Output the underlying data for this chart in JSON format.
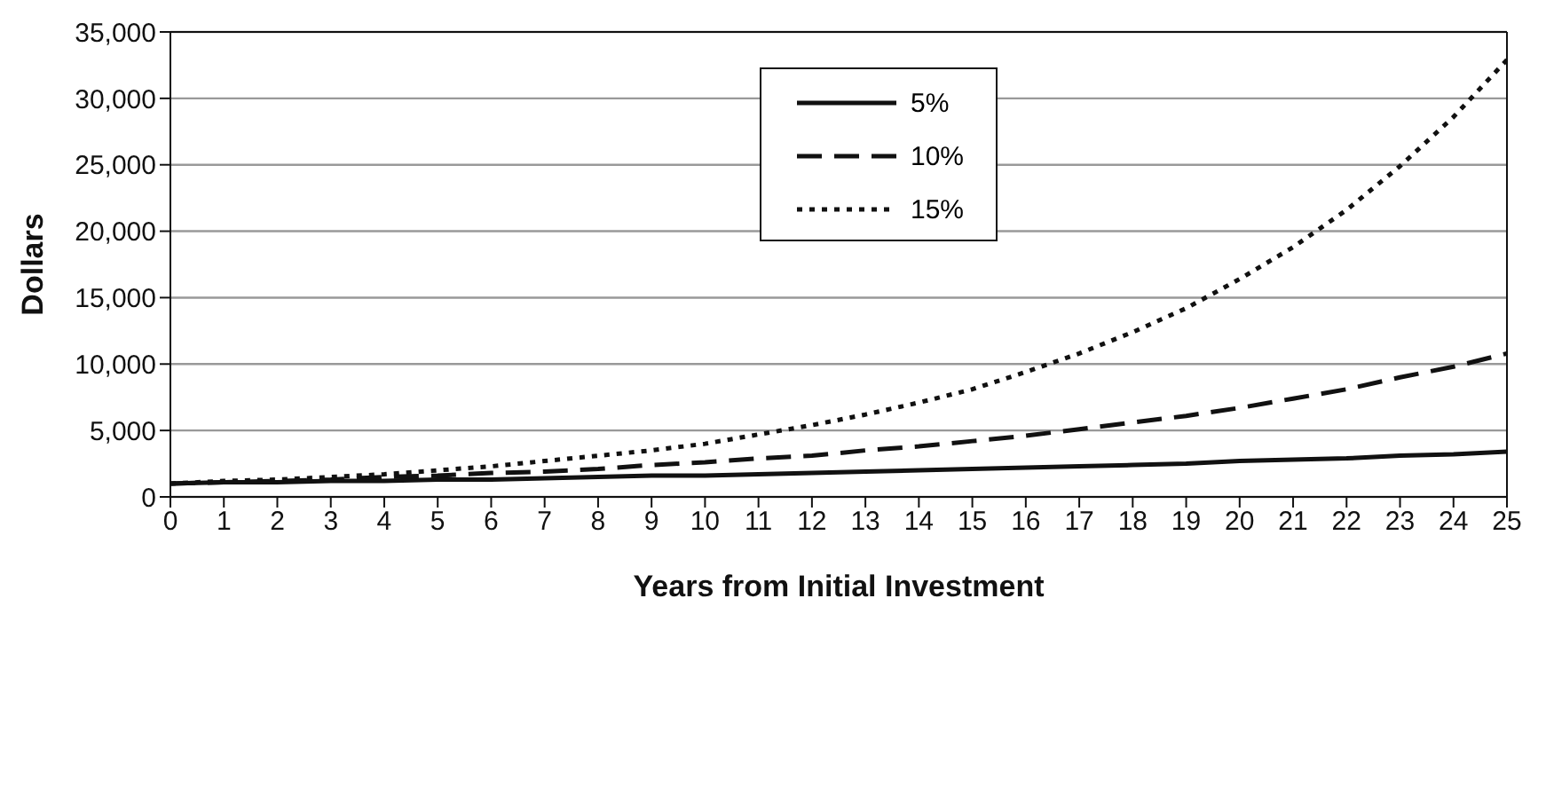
{
  "chart_data": {
    "type": "line",
    "xlabel": "Years from Initial Investment",
    "ylabel": "Dollars",
    "x": [
      0,
      1,
      2,
      3,
      4,
      5,
      6,
      7,
      8,
      9,
      10,
      11,
      12,
      13,
      14,
      15,
      16,
      17,
      18,
      19,
      20,
      21,
      22,
      23,
      24,
      25
    ],
    "series": [
      {
        "name": "5%",
        "color": "#111111",
        "line_style": "solid",
        "values": [
          1000,
          1100,
          1100,
          1200,
          1200,
          1300,
          1300,
          1400,
          1500,
          1600,
          1600,
          1700,
          1800,
          1900,
          2000,
          2100,
          2200,
          2300,
          2400,
          2500,
          2700,
          2800,
          2900,
          3100,
          3200,
          3400
        ]
      },
      {
        "name": "10%",
        "color": "#111111",
        "line_style": "dashed",
        "values": [
          1000,
          1100,
          1200,
          1300,
          1500,
          1600,
          1800,
          1900,
          2100,
          2400,
          2600,
          2900,
          3100,
          3500,
          3800,
          4200,
          4600,
          5100,
          5600,
          6100,
          6700,
          7400,
          8100,
          9000,
          9800,
          10800
        ]
      },
      {
        "name": "15%",
        "color": "#111111",
        "line_style": "dotted",
        "values": [
          1000,
          1200,
          1300,
          1500,
          1700,
          2000,
          2300,
          2700,
          3100,
          3500,
          4000,
          4700,
          5400,
          6200,
          7100,
          8100,
          9400,
          10800,
          12400,
          14200,
          16400,
          18800,
          21600,
          24900,
          28600,
          32900
        ]
      }
    ],
    "xlim": [
      0,
      25
    ],
    "xticks": [
      0,
      1,
      2,
      3,
      4,
      5,
      6,
      7,
      8,
      9,
      10,
      11,
      12,
      13,
      14,
      15,
      16,
      17,
      18,
      19,
      20,
      21,
      22,
      23,
      24,
      25
    ],
    "ylim": [
      0,
      35000
    ],
    "yticks": [
      0,
      {
        "value": 5000,
        "label": "5,000"
      },
      {
        "value": 10000,
        "label": "10,000"
      },
      {
        "value": 15000,
        "label": "15,000"
      },
      {
        "value": 20000,
        "label": "20,000"
      },
      {
        "value": 25000,
        "label": "25,000"
      },
      {
        "value": 30000,
        "label": "30,000"
      },
      {
        "value": 35000,
        "label": "35,000"
      }
    ],
    "grid": "y",
    "legend": "top",
    "marker": "none"
  }
}
